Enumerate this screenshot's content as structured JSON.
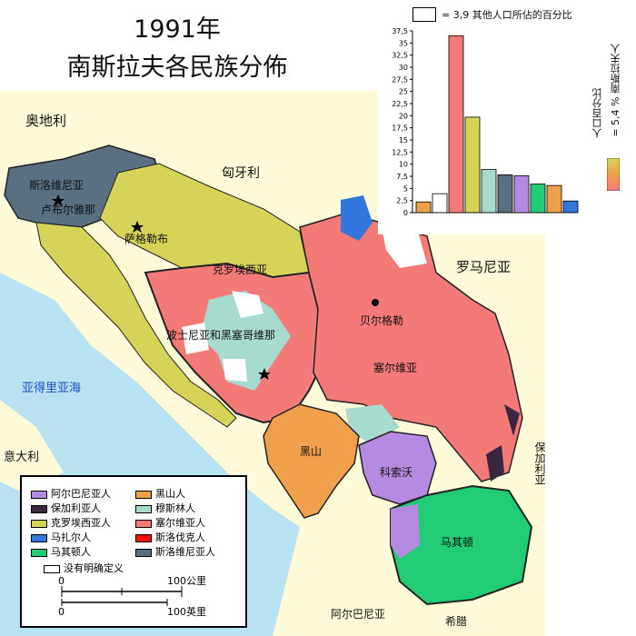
{
  "title_line1": "1991年",
  "title_line2": "南斯拉夫各民族分佈",
  "regions": {
    "austria": "奥地利",
    "hungary": "匈牙利",
    "romania": "罗马尼亚",
    "italy": "意大利",
    "adriatic": "亚得里亚海",
    "bulgaria": "保加利亚",
    "albania": "阿尔巴尼亚",
    "greece": "希腊",
    "slovenia": "斯洛维尼亚",
    "ljubljana": "卢布尔雅那",
    "zagreb": "萨格勒布",
    "croatia": "克罗埃西亚",
    "bosnia": "波士尼亚和黑塞哥维那",
    "belgrade": "贝尔格勒",
    "serbia": "塞尔维亚",
    "montenegro": "黑山",
    "kosovo": "科索沃",
    "macedonia": "马其顿"
  },
  "legend": {
    "items": [
      {
        "label": "阿尔巴尼亚人",
        "color": "#b48be0"
      },
      {
        "label": "黑山人",
        "color": "#f0a04b"
      },
      {
        "label": "保加利亚人",
        "color": "#3b2640"
      },
      {
        "label": "穆斯林人",
        "color": "#a7dbd0"
      },
      {
        "label": "克罗埃西亚人",
        "color": "#d6d458"
      },
      {
        "label": "塞尔维亚人",
        "color": "#f47a78"
      },
      {
        "label": "马扎尔人",
        "color": "#3377dd"
      },
      {
        "label": "斯洛伐克人",
        "color": "#e11"
      },
      {
        "label": "马其顿人",
        "color": "#22cc77"
      },
      {
        "label": "斯洛维尼亚人",
        "color": "#5a7080"
      }
    ],
    "undefined_label": "没有明确定义",
    "scale_km_0": "0",
    "scale_km_100": "100公里",
    "scale_mi_0": "0",
    "scale_mi_100": "100英里"
  },
  "chart_data": {
    "type": "bar",
    "title": "= 3,9 其他人口所佔的百分比",
    "ylabel": "人口百分比",
    "side_note": "= 5,4 % 南斯拉夫人",
    "ylim": [
      0,
      37.5
    ],
    "yticks": [
      "0",
      "2,5",
      "5",
      "7,5",
      "10",
      "12,5",
      "15",
      "17,5",
      "20",
      "22,5",
      "25",
      "27,5",
      "30",
      "32,5",
      "35",
      "37,5"
    ],
    "series": [
      {
        "values": [
          2.2,
          3.9,
          36.5,
          19.7,
          8.9,
          7.8,
          7.6,
          5.9,
          5.6,
          2.4
        ],
        "colors": [
          "#f0a04b",
          "#ffffff",
          "#f47a78",
          "#d6d458",
          "#a7dbd0",
          "#5a7080",
          "#b48be0",
          "#22cc77",
          "#f0a04b",
          "#3377dd"
        ]
      }
    ]
  }
}
